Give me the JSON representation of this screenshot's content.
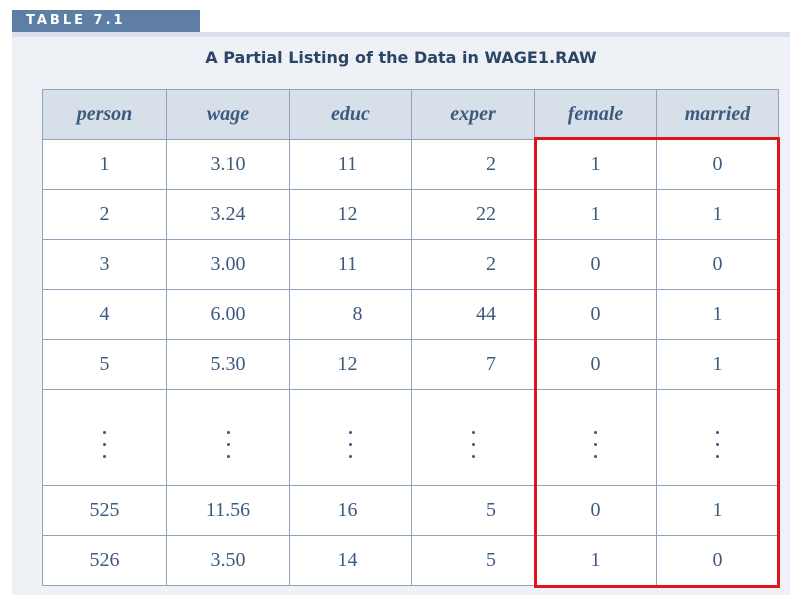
{
  "table_label": "TABLE 7.1",
  "caption": "A Partial Listing of the Data in WAGE1.RAW",
  "columns": [
    "person",
    "wage",
    "educ",
    "exper",
    "female",
    "married"
  ],
  "rows": [
    [
      "1",
      "3.10",
      "11",
      "2",
      "1",
      "0"
    ],
    [
      "2",
      "3.24",
      "12",
      "22",
      "1",
      "1"
    ],
    [
      "3",
      "3.00",
      "11",
      "2",
      "0",
      "0"
    ],
    [
      "4",
      "6.00",
      "8",
      "44",
      "0",
      "1"
    ],
    [
      "5",
      "5.30",
      "12",
      "7",
      "0",
      "1"
    ],
    [
      "525",
      "11.56",
      "16",
      "5",
      "0",
      "1"
    ],
    [
      "526",
      "3.50",
      "14",
      "5",
      "1",
      "0"
    ]
  ],
  "highlighted_columns": [
    "female",
    "married"
  ],
  "colors": {
    "label_bg": "#5f7ea3",
    "header_bg": "#d7dfe9",
    "text": "#3d5b7e",
    "highlight": "#e0141c"
  }
}
